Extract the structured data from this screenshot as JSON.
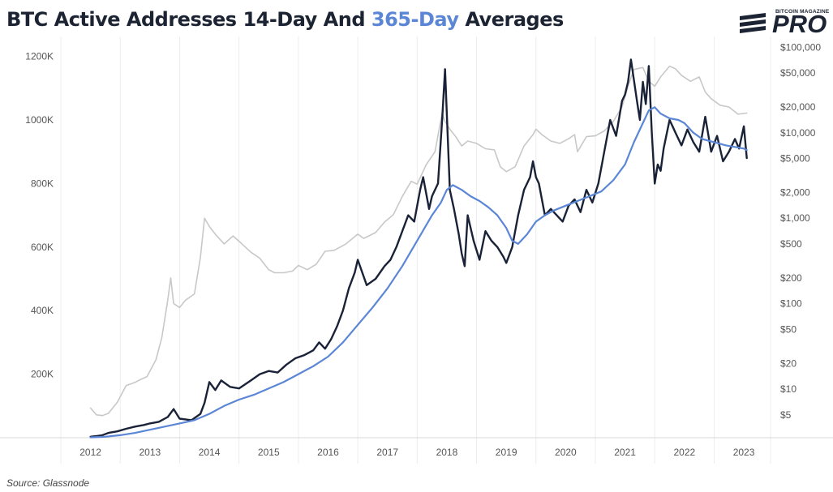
{
  "title": {
    "part1": "BTC Active Addresses 14-Day And ",
    "part2": "365-Day",
    "part3": " Averages",
    "highlight_color": "#5b86d6"
  },
  "logo": {
    "small_text": "BITCOIN MAGAZINE",
    "big_text": "PRO"
  },
  "source": "Source: Glassnode",
  "chart_data": {
    "type": "line",
    "x_ticks": [
      "2012",
      "2013",
      "2014",
      "2015",
      "2016",
      "2017",
      "2018",
      "2019",
      "2020",
      "2021",
      "2022",
      "2023"
    ],
    "left_axis": {
      "ticks": [
        200000,
        400000,
        600000,
        800000,
        1000000,
        1200000
      ],
      "tick_labels": [
        "200K",
        "400K",
        "600K",
        "800K",
        "1000K",
        "1200K"
      ],
      "ylim": [
        0,
        1250000
      ]
    },
    "right_axis": {
      "scale": "log",
      "ticks": [
        5,
        10,
        20,
        50,
        100,
        200,
        500,
        1000,
        2000,
        5000,
        10000,
        20000,
        50000,
        100000
      ],
      "tick_labels": [
        "$5",
        "$10",
        "$20",
        "$50",
        "$100",
        "$200",
        "$500",
        "$1,000",
        "$2,000",
        "$5,000",
        "$10,000",
        "$20,000",
        "$50,000",
        "$100,000"
      ],
      "ylim": [
        2.7,
        120000
      ]
    },
    "grid": "vertical",
    "series": [
      {
        "axis": "right",
        "color": "#c8c8c8",
        "x": [
          2012.0,
          2012.1,
          2012.2,
          2012.3,
          2012.45,
          2012.6,
          2012.75,
          2012.85,
          2012.95,
          2013.1,
          2013.2,
          2013.3,
          2013.35,
          2013.4,
          2013.5,
          2013.6,
          2013.75,
          2013.85,
          2013.92,
          2014.0,
          2014.1,
          2014.25,
          2014.4,
          2014.55,
          2014.7,
          2014.85,
          2015.0,
          2015.1,
          2015.25,
          2015.4,
          2015.5,
          2015.65,
          2015.8,
          2015.95,
          2016.1,
          2016.3,
          2016.5,
          2016.6,
          2016.8,
          2016.95,
          2017.1,
          2017.25,
          2017.4,
          2017.5,
          2017.65,
          2017.8,
          2017.92,
          2017.97,
          2018.05,
          2018.15,
          2018.25,
          2018.35,
          2018.5,
          2018.65,
          2018.8,
          2018.9,
          2019.0,
          2019.15,
          2019.3,
          2019.45,
          2019.5,
          2019.6,
          2019.75,
          2019.9,
          2020.05,
          2020.15,
          2020.2,
          2020.35,
          2020.5,
          2020.65,
          2020.8,
          2020.95,
          2021.05,
          2021.15,
          2021.3,
          2021.4,
          2021.5,
          2021.6,
          2021.75,
          2021.85,
          2021.95,
          2022.1,
          2022.25,
          2022.35,
          2022.45,
          2022.6,
          2022.75,
          2022.9,
          2023.05
        ],
        "values": [
          6,
          5,
          4.9,
          5.2,
          7,
          11,
          12,
          13,
          14,
          22,
          40,
          110,
          200,
          100,
          90,
          110,
          130,
          350,
          1000,
          800,
          650,
          500,
          620,
          500,
          400,
          340,
          250,
          230,
          230,
          240,
          280,
          250,
          290,
          410,
          420,
          500,
          650,
          580,
          680,
          900,
          1100,
          1800,
          2700,
          2500,
          4200,
          6000,
          17000,
          13500,
          11000,
          9000,
          7000,
          8000,
          7500,
          6500,
          6300,
          4000,
          3500,
          4000,
          7000,
          9500,
          11000,
          9500,
          8000,
          7500,
          8500,
          9500,
          6000,
          9000,
          9200,
          10500,
          13500,
          20000,
          35000,
          55000,
          58000,
          40000,
          35000,
          45000,
          60000,
          56000,
          47000,
          40000,
          45000,
          30000,
          25000,
          21000,
          20000,
          16500,
          17000
        ]
      },
      {
        "axis": "left",
        "color": "#1a2238",
        "x": [
          2012.0,
          2012.1,
          2012.2,
          2012.3,
          2012.45,
          2012.6,
          2012.75,
          2012.9,
          2013.0,
          2013.15,
          2013.3,
          2013.4,
          2013.5,
          2013.7,
          2013.85,
          2013.92,
          2014.0,
          2014.1,
          2014.2,
          2014.35,
          2014.5,
          2014.7,
          2014.85,
          2015.0,
          2015.15,
          2015.3,
          2015.45,
          2015.6,
          2015.75,
          2015.85,
          2015.95,
          2016.05,
          2016.15,
          2016.25,
          2016.35,
          2016.45,
          2016.5,
          2016.65,
          2016.8,
          2016.95,
          2017.05,
          2017.15,
          2017.25,
          2017.35,
          2017.45,
          2017.55,
          2017.6,
          2017.7,
          2017.75,
          2017.85,
          2017.92,
          2017.97,
          2018.05,
          2018.12,
          2018.2,
          2018.25,
          2018.3,
          2018.35,
          2018.45,
          2018.55,
          2018.65,
          2018.75,
          2018.85,
          2018.95,
          2019.0,
          2019.1,
          2019.2,
          2019.3,
          2019.4,
          2019.45,
          2019.5,
          2019.55,
          2019.65,
          2019.75,
          2019.85,
          2019.95,
          2020.05,
          2020.15,
          2020.25,
          2020.35,
          2020.45,
          2020.55,
          2020.65,
          2020.75,
          2020.85,
          2020.95,
          2021.0,
          2021.05,
          2021.1,
          2021.2,
          2021.25,
          2021.3,
          2021.35,
          2021.4,
          2021.45,
          2021.5,
          2021.55,
          2021.6,
          2021.65,
          2021.75,
          2021.8,
          2021.85,
          2021.95,
          2022.05,
          2022.15,
          2022.25,
          2022.35,
          2022.45,
          2022.55,
          2022.65,
          2022.75,
          2022.85,
          2022.92,
          2023.0,
          2023.05
        ],
        "values": [
          3000,
          5000,
          8000,
          15000,
          20000,
          28000,
          35000,
          40000,
          45000,
          50000,
          65000,
          90000,
          60000,
          55000,
          75000,
          110000,
          175000,
          150000,
          180000,
          160000,
          155000,
          180000,
          200000,
          210000,
          205000,
          230000,
          250000,
          260000,
          275000,
          300000,
          280000,
          310000,
          350000,
          400000,
          470000,
          520000,
          560000,
          480000,
          500000,
          540000,
          560000,
          600000,
          650000,
          700000,
          680000,
          780000,
          820000,
          720000,
          760000,
          800000,
          1000000,
          1160000,
          780000,
          720000,
          640000,
          580000,
          540000,
          700000,
          620000,
          560000,
          650000,
          620000,
          600000,
          570000,
          550000,
          600000,
          700000,
          780000,
          820000,
          870000,
          820000,
          800000,
          700000,
          720000,
          700000,
          680000,
          730000,
          750000,
          710000,
          780000,
          740000,
          800000,
          900000,
          1000000,
          950000,
          1060000,
          1080000,
          1120000,
          1190000,
          1060000,
          1000000,
          1120000,
          1050000,
          1170000,
          960000,
          800000,
          860000,
          840000,
          910000,
          1000000,
          980000,
          960000,
          920000,
          970000,
          930000,
          900000,
          1010000,
          900000,
          950000,
          870000,
          900000,
          940000,
          910000,
          980000,
          880000
        ]
      },
      {
        "axis": "left",
        "color": "#5b86d6",
        "x": [
          2012.0,
          2012.25,
          2012.5,
          2012.75,
          2013.0,
          2013.25,
          2013.5,
          2013.75,
          2014.0,
          2014.25,
          2014.5,
          2014.75,
          2015.0,
          2015.25,
          2015.5,
          2015.75,
          2016.0,
          2016.25,
          2016.5,
          2016.75,
          2017.0,
          2017.25,
          2017.5,
          2017.75,
          2017.9,
          2018.0,
          2018.1,
          2018.25,
          2018.4,
          2018.55,
          2018.7,
          2018.85,
          2019.0,
          2019.1,
          2019.2,
          2019.35,
          2019.5,
          2019.65,
          2019.8,
          2020.0,
          2020.2,
          2020.4,
          2020.6,
          2020.8,
          2021.0,
          2021.15,
          2021.3,
          2021.4,
          2021.5,
          2021.6,
          2021.75,
          2021.9,
          2022.0,
          2022.15,
          2022.3,
          2022.5,
          2022.7,
          2022.85,
          2023.0,
          2023.05
        ],
        "values": [
          1000,
          3000,
          8000,
          15000,
          25000,
          35000,
          45000,
          55000,
          75000,
          100000,
          120000,
          135000,
          155000,
          175000,
          200000,
          225000,
          255000,
          300000,
          355000,
          410000,
          470000,
          540000,
          620000,
          700000,
          740000,
          780000,
          795000,
          780000,
          760000,
          745000,
          725000,
          700000,
          660000,
          620000,
          610000,
          640000,
          680000,
          700000,
          715000,
          730000,
          745000,
          760000,
          775000,
          810000,
          860000,
          930000,
          990000,
          1030000,
          1040000,
          1020000,
          1005000,
          1000000,
          990000,
          960000,
          940000,
          930000,
          920000,
          915000,
          910000,
          905000
        ]
      }
    ]
  }
}
